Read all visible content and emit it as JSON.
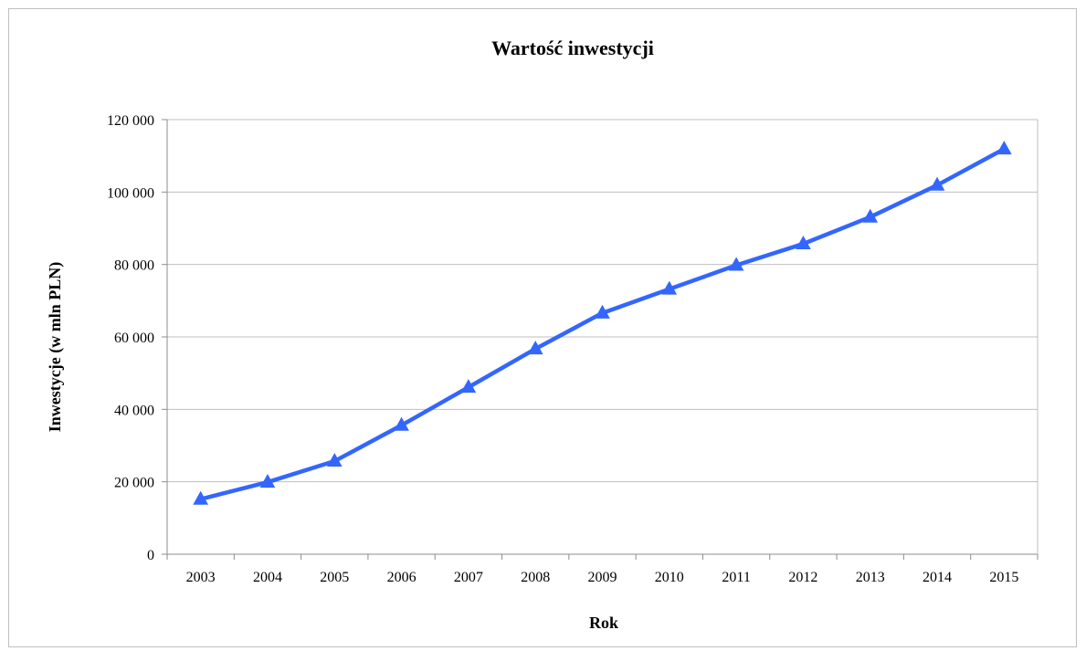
{
  "chart_data": {
    "type": "line",
    "title": "Wartość inwestycji",
    "xlabel": "Rok",
    "ylabel": "Inwestycje (w mln PLN)",
    "categories": [
      "2003",
      "2004",
      "2005",
      "2006",
      "2007",
      "2008",
      "2009",
      "2010",
      "2011",
      "2012",
      "2013",
      "2014",
      "2015"
    ],
    "series": [
      {
        "values": [
          15200,
          19900,
          25700,
          35600,
          46100,
          56700,
          66600,
          73200,
          79800,
          85700,
          93100,
          101900,
          111900
        ],
        "color": "#3366ff",
        "marker": "triangle"
      }
    ],
    "ylim": [
      0,
      120000
    ],
    "yticks": [
      0,
      20000,
      40000,
      60000,
      80000,
      100000,
      120000
    ],
    "ytick_labels": [
      "0",
      "20 000",
      "40 000",
      "60 000",
      "80 000",
      "100 000",
      "120 000"
    ],
    "grid": "horizontal",
    "legend": "none"
  }
}
